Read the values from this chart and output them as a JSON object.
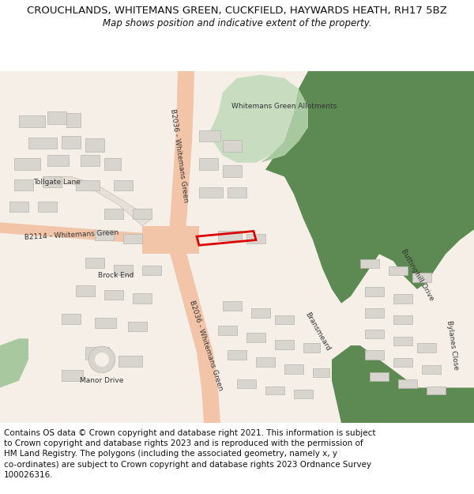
{
  "title_line1": "CROUCHLANDS, WHITEMANS GREEN, CUCKFIELD, HAYWARDS HEATH, RH17 5BZ",
  "title_line2": "Map shows position and indicative extent of the property.",
  "disclaimer_lines": [
    "Contains OS data © Crown copyright and database right 2021. This information is subject",
    "to Crown copyright and database rights 2023 and is reproduced with the permission of",
    "HM Land Registry. The polygons (including the associated geometry, namely x, y",
    "co-ordinates) are subject to Crown copyright and database rights 2023 Ordnance Survey",
    "100026316."
  ],
  "bg_color": "#ffffff",
  "map_bg": "#f5efe8",
  "road_main": "#f2c4a8",
  "road_minor": "#e8e0d8",
  "building_fc": "#d8d4ce",
  "building_ec": "#b8b4ae",
  "green_dark": "#5d8a52",
  "green_light": "#a8c8a0",
  "green_light2": "#c8dcc0",
  "prop_color": "#dd0000",
  "label_color": "#333333",
  "title_fs": 9.5,
  "sub_fs": 8.5,
  "disc_fs": 7.5,
  "map_label_fs": 6.5
}
